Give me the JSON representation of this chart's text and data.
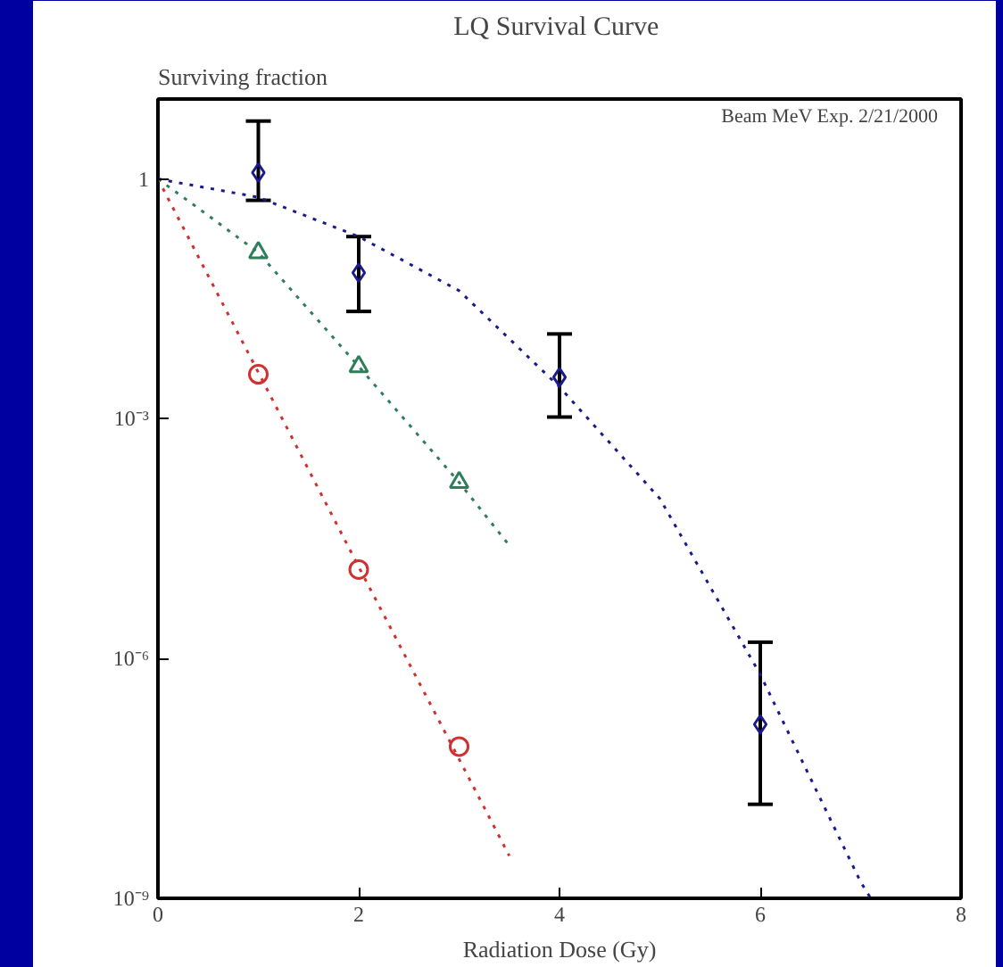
{
  "chart_data": {
    "type": "scatter",
    "title": "LQ  Survival Curve",
    "ylabel": "Surviving fraction",
    "xlabel": "Radiation Dose (Gy)",
    "annotations": [
      "Beam MeV  Exp. 2/21/2000"
    ],
    "log": "y",
    "grid": false,
    "xlim": [
      0,
      8
    ],
    "xticks": [
      0,
      2,
      4,
      6,
      8
    ],
    "ylim": [
      1e-09,
      10
    ],
    "yticks": [
      {
        "value": 1,
        "label": "1"
      },
      {
        "value": 0.001,
        "label": "10⁻³"
      },
      {
        "value": 1e-06,
        "label": "10⁻⁶"
      },
      {
        "value": 1e-09,
        "label": "10⁻⁹"
      }
    ],
    "series": [
      {
        "color": "#d03030",
        "marker": "circle",
        "x": [
          1,
          2,
          3
        ],
        "values": [
          0.0036,
          1.3e-05,
          7.9e-08
        ]
      },
      {
        "color": "#2e7d5b",
        "marker": "triangle",
        "x": [
          1,
          2,
          3
        ],
        "values": [
          0.12,
          0.0045,
          0.00016
        ]
      },
      {
        "color": "#1a1a8c",
        "marker": "diamond",
        "x": [
          1,
          2,
          4,
          6
        ],
        "values": [
          1.2,
          0.067,
          0.0033,
          1.5e-07
        ],
        "errors": [
          [
            0.54,
            5.3
          ],
          [
            0.022,
            0.19
          ],
          [
            0.00105,
            0.0115
          ],
          [
            1.5e-08,
            1.6e-06
          ]
        ]
      },
      {
        "type": "line",
        "color": "#d03030",
        "line_style": "dotted",
        "x": [
          0,
          1,
          2,
          3,
          3.5
        ],
        "values": [
          1,
          0.0038,
          1.4e-05,
          5.5e-08,
          3.4e-09
        ]
      },
      {
        "type": "line",
        "color": "#2e7d5b",
        "line_style": "dotted",
        "x": [
          0,
          0.5,
          1,
          2,
          3,
          3.5
        ],
        "values": [
          1,
          0.35,
          0.12,
          0.0045,
          0.00016,
          2.6e-05
        ]
      },
      {
        "type": "line",
        "color": "#1a1a8c",
        "line_style": "dotted",
        "x": [
          0,
          1,
          2,
          3,
          4,
          5,
          6,
          7,
          7.1
        ],
        "values": [
          1,
          0.59,
          0.19,
          0.04,
          0.0025,
          0.0001,
          6.3e-07,
          1.6e-09,
          1e-09
        ]
      }
    ]
  }
}
